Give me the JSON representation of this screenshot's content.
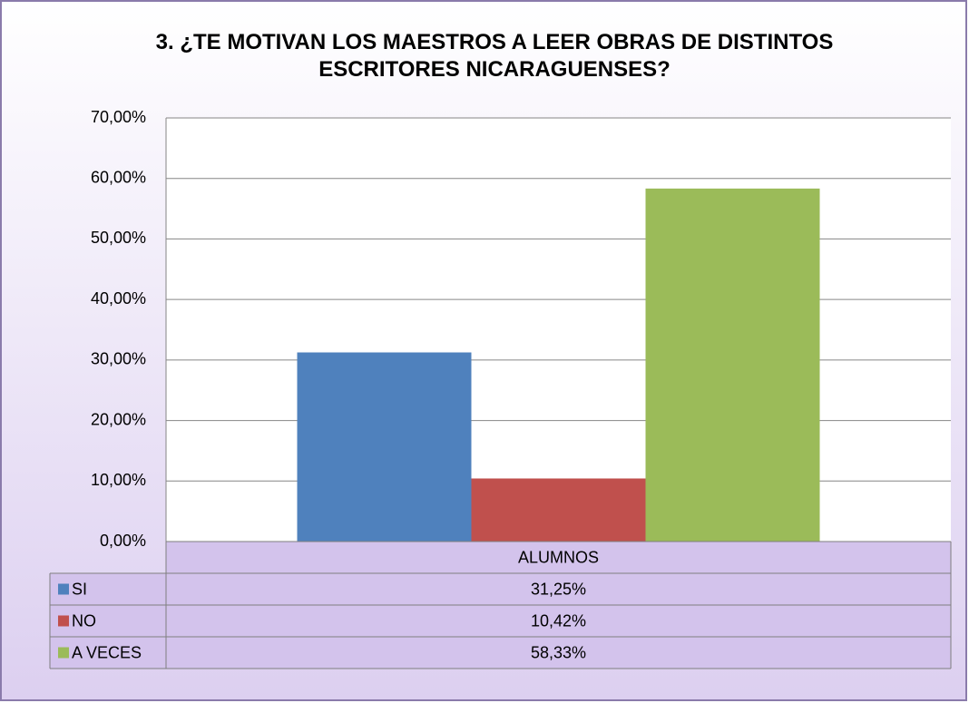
{
  "chart_data": {
    "type": "bar",
    "title": "3. ¿TE MOTIVAN LOS MAESTROS A LEER OBRAS DE DISTINTOS ESCRITORES NICARAGUENSES?",
    "categories": [
      "ALUMNOS"
    ],
    "series": [
      {
        "name": "SI",
        "color": "#4f81bd",
        "values": [
          31.25
        ],
        "value_labels": [
          "31,25%"
        ]
      },
      {
        "name": "NO",
        "color": "#c0504d",
        "values": [
          10.42
        ],
        "value_labels": [
          "10,42%"
        ]
      },
      {
        "name": "A VECES",
        "color": "#9bbb59",
        "values": [
          58.33
        ],
        "value_labels": [
          "58,33%"
        ]
      }
    ],
    "ylim": [
      0,
      70
    ],
    "yticks": [
      {
        "value": 0,
        "label": "0,00%"
      },
      {
        "value": 10,
        "label": "10,00%"
      },
      {
        "value": 20,
        "label": "20,00%"
      },
      {
        "value": 30,
        "label": "30,00%"
      },
      {
        "value": 40,
        "label": "40,00%"
      },
      {
        "value": 50,
        "label": "50,00%"
      },
      {
        "value": 60,
        "label": "60,00%"
      },
      {
        "value": 70,
        "label": "70,00%"
      }
    ],
    "grid": true,
    "data_table": true
  }
}
